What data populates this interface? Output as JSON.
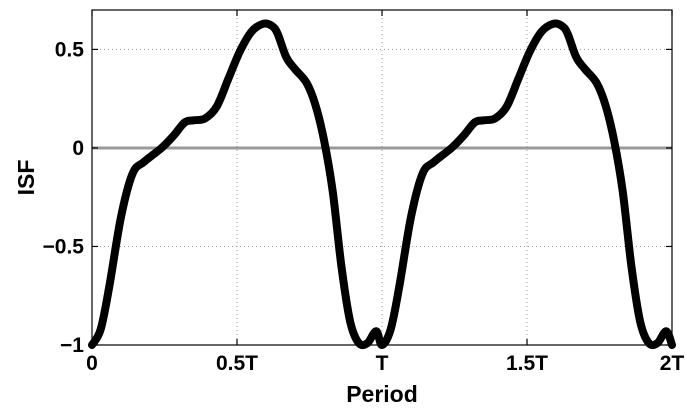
{
  "chart_data": {
    "type": "line",
    "title": "",
    "xlabel": "Period",
    "ylabel": "ISF",
    "xlim": [
      0,
      2
    ],
    "ylim": [
      -1,
      0.7
    ],
    "grid": "dotted",
    "x_ticks": [
      {
        "value": 0,
        "label": "0"
      },
      {
        "value": 0.5,
        "label": "0.5T"
      },
      {
        "value": 1,
        "label": "T"
      },
      {
        "value": 1.5,
        "label": "1.5T"
      },
      {
        "value": 2,
        "label": "2T"
      }
    ],
    "y_ticks": [
      {
        "value": -1,
        "label": "−1"
      },
      {
        "value": -0.5,
        "label": "−0.5"
      },
      {
        "value": 0,
        "label": "0"
      },
      {
        "value": 0.5,
        "label": "0.5"
      }
    ],
    "reference_line": {
      "y": 0,
      "color": "#999999"
    },
    "series": [
      {
        "color": "#000000",
        "x": [
          0,
          0.03,
          0.06,
          0.1,
          0.14,
          0.18,
          0.24,
          0.28,
          0.32,
          0.35,
          0.39,
          0.43,
          0.47,
          0.51,
          0.55,
          0.59,
          0.62,
          0.64,
          0.67,
          0.7,
          0.74,
          0.77,
          0.8,
          0.83,
          0.86,
          0.89,
          0.92,
          0.95,
          0.98,
          1.0,
          1.03,
          1.06,
          1.1,
          1.14,
          1.18,
          1.24,
          1.28,
          1.32,
          1.35,
          1.39,
          1.43,
          1.47,
          1.51,
          1.55,
          1.59,
          1.62,
          1.64,
          1.67,
          1.7,
          1.74,
          1.77,
          1.8,
          1.83,
          1.86,
          1.89,
          1.92,
          1.95,
          1.98,
          2.0
        ],
        "y": [
          -1.0,
          -0.92,
          -0.7,
          -0.35,
          -0.13,
          -0.07,
          0.0,
          0.06,
          0.13,
          0.14,
          0.15,
          0.21,
          0.35,
          0.49,
          0.59,
          0.63,
          0.62,
          0.58,
          0.46,
          0.4,
          0.33,
          0.22,
          0.04,
          -0.22,
          -0.6,
          -0.88,
          -0.99,
          -0.99,
          -0.93,
          -1.0,
          -0.92,
          -0.7,
          -0.35,
          -0.13,
          -0.07,
          0.0,
          0.06,
          0.13,
          0.14,
          0.15,
          0.21,
          0.35,
          0.49,
          0.59,
          0.63,
          0.62,
          0.58,
          0.46,
          0.4,
          0.33,
          0.22,
          0.04,
          -0.22,
          -0.6,
          -0.88,
          -0.99,
          -0.99,
          -0.93,
          -1.0
        ]
      }
    ]
  }
}
